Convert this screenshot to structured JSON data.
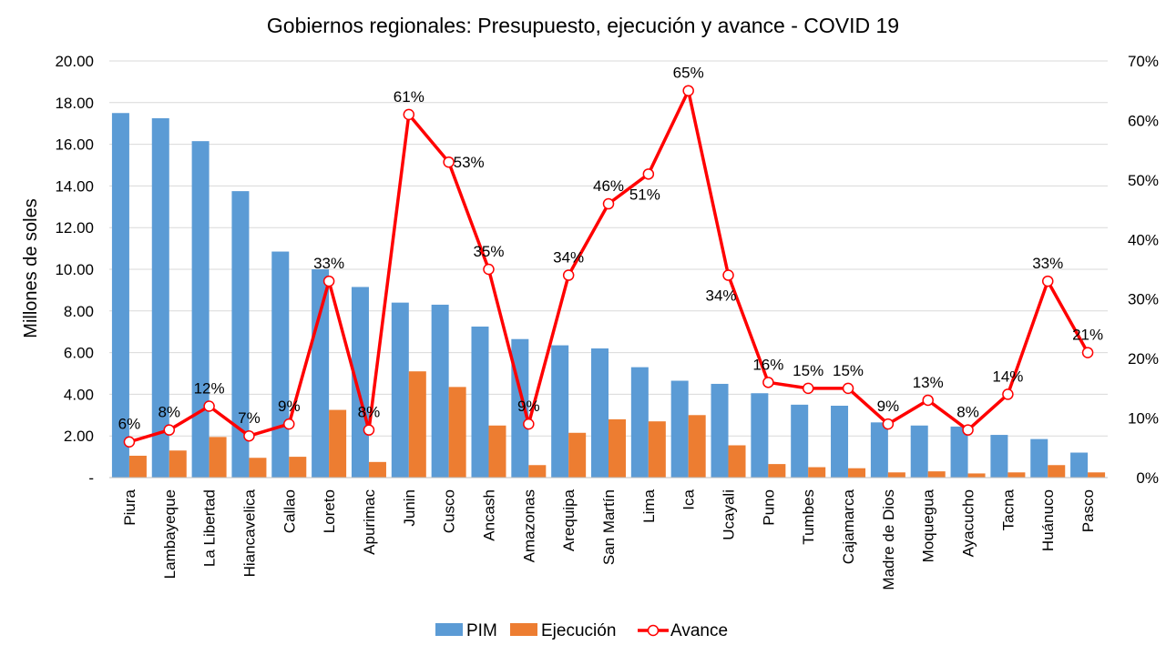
{
  "chart_data": {
    "type": "bar",
    "title": "Gobiernos regionales: Presupuesto, ejecución y avance - COVID 19",
    "ylabel": "Millones de soles",
    "xlabel": "",
    "ylim": [
      0,
      20
    ],
    "y2lim": [
      0,
      70
    ],
    "y_ticks": [
      "-",
      "2.00",
      "4.00",
      "6.00",
      "8.00",
      "10.00",
      "12.00",
      "14.00",
      "16.00",
      "18.00",
      "20.00"
    ],
    "y2_ticks": [
      "0%",
      "10%",
      "20%",
      "30%",
      "40%",
      "50%",
      "60%",
      "70%"
    ],
    "grid": true,
    "legend_position": "bottom",
    "categories": [
      "Piura",
      "Lambayeque",
      "La Libertad",
      "Hiancavelica",
      "Callao",
      "Loreto",
      "Apurimac",
      "Junin",
      "Cusco",
      "Ancash",
      "Amazonas",
      "Arequipa",
      "San Martín",
      "Lima",
      "Ica",
      "Ucayali",
      "Puno",
      "Tumbes",
      "Cajamarca",
      "Madre de Dios",
      "Moquegua",
      "Ayacucho",
      "Tacna",
      "Huánuco",
      "Pasco"
    ],
    "series": [
      {
        "name": "PIM",
        "kind": "bar",
        "axis": "left",
        "color": "#5B9BD5",
        "values": [
          17.5,
          17.25,
          16.15,
          13.75,
          10.85,
          10.0,
          9.15,
          8.4,
          8.3,
          7.25,
          6.65,
          6.35,
          6.2,
          5.3,
          4.65,
          4.5,
          4.05,
          3.5,
          3.45,
          2.65,
          2.5,
          2.45,
          2.05,
          1.85,
          1.2
        ]
      },
      {
        "name": "Ejecución",
        "kind": "bar",
        "axis": "left",
        "color": "#ED7D31",
        "values": [
          1.05,
          1.3,
          1.95,
          0.95,
          1.0,
          3.25,
          0.75,
          5.1,
          4.35,
          2.5,
          0.6,
          2.15,
          2.8,
          2.7,
          3.0,
          1.55,
          0.65,
          0.5,
          0.45,
          0.25,
          0.3,
          0.2,
          0.25,
          0.6,
          0.25
        ]
      },
      {
        "name": "Avance",
        "kind": "line",
        "axis": "right",
        "color": "#FF0000",
        "values": [
          6,
          8,
          12,
          7,
          9,
          33,
          8,
          61,
          53,
          35,
          9,
          34,
          46,
          51,
          65,
          34,
          16,
          15,
          15,
          9,
          13,
          8,
          14,
          33,
          21
        ],
        "labels": [
          "6%",
          "8%",
          "12%",
          "7%",
          "9%",
          "33%",
          "8%",
          "61%",
          "53%",
          "35%",
          "9%",
          "34%",
          "46%",
          "51%",
          "65%",
          "34%",
          "16%",
          "15%",
          "15%",
          "9%",
          "13%",
          "8%",
          "14%",
          "33%",
          "21%"
        ]
      }
    ]
  }
}
